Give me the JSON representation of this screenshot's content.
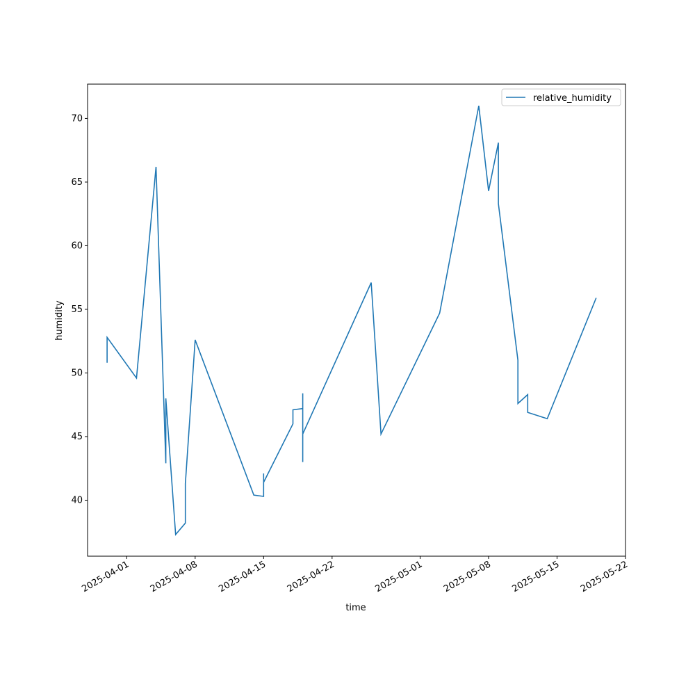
{
  "chart_data": {
    "type": "line",
    "xlabel": "time",
    "ylabel": "humidity",
    "x": [
      "2025-03-30",
      "2025-03-30",
      "2025-04-02",
      "2025-04-04",
      "2025-04-05",
      "2025-04-05",
      "2025-04-06",
      "2025-04-07",
      "2025-04-07",
      "2025-04-08",
      "2025-04-14",
      "2025-04-15",
      "2025-04-15",
      "2025-04-15",
      "2025-04-15",
      "2025-04-15",
      "2025-04-18",
      "2025-04-18",
      "2025-04-19",
      "2025-04-19",
      "2025-04-19",
      "2025-04-19",
      "2025-04-19",
      "2025-04-26",
      "2025-04-27",
      "2025-05-03",
      "2025-05-07",
      "2025-05-08",
      "2025-05-09",
      "2025-05-09",
      "2025-05-09",
      "2025-05-11",
      "2025-05-11",
      "2025-05-11",
      "2025-05-12",
      "2025-05-12",
      "2025-05-12",
      "2025-05-14",
      "2025-05-19"
    ],
    "series": [
      {
        "name": "relative_humidity",
        "color": "#1f77b4",
        "values": [
          50.8,
          52.8,
          49.6,
          66.2,
          42.9,
          48.0,
          37.3,
          38.2,
          41.3,
          52.6,
          40.4,
          40.3,
          41.0,
          41.2,
          42.1,
          41.4,
          46.0,
          47.1,
          47.2,
          48.4,
          46.5,
          43.0,
          45.2,
          57.1,
          45.2,
          54.7,
          71.0,
          64.3,
          68.1,
          67.8,
          63.3,
          51.0,
          50.4,
          47.6,
          48.3,
          47.4,
          46.9,
          46.4,
          55.9
        ]
      }
    ],
    "xlim": [
      "2025-03-28",
      "2025-05-22"
    ],
    "xticks": [
      "2025-04-01",
      "2025-04-08",
      "2025-04-15",
      "2025-04-22",
      "2025-05-01",
      "2025-05-08",
      "2025-05-15",
      "2025-05-22"
    ],
    "ylim": [
      35.6,
      72.7
    ],
    "yticks": [
      40,
      45,
      50,
      55,
      60,
      65,
      70
    ],
    "legend": "upper right"
  }
}
